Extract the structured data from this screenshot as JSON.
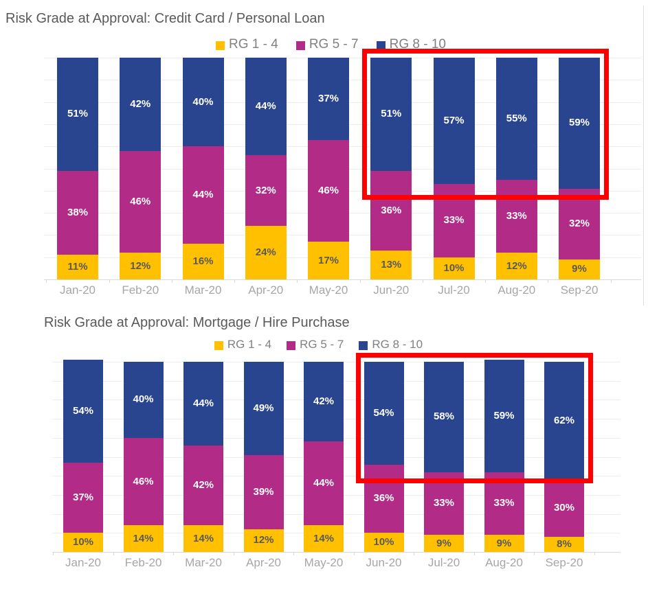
{
  "styles": {
    "title_color": "#595959",
    "legend_text_color": "#808080",
    "axis_label_color": "#A6A6A6",
    "gridline_color": "#EDEDED",
    "label_on_dark": "#FFFFFF",
    "label_on_yellow": "#595959",
    "highlight_color": "#FE0000",
    "background": "#FFFFFF"
  },
  "chart_data": [
    {
      "type": "bar",
      "stacked": true,
      "title": "Risk Grade at Approval: Credit Card / Personal Loan",
      "categories": [
        "Jan-20",
        "Feb-20",
        "Mar-20",
        "Apr-20",
        "May-20",
        "Jun-20",
        "Jul-20",
        "Aug-20",
        "Sep-20"
      ],
      "series": [
        {
          "name": "RG 1 - 4",
          "color": "#FFC000",
          "values": [
            11,
            12,
            16,
            24,
            17,
            13,
            10,
            12,
            9
          ]
        },
        {
          "name": "RG 5 - 7",
          "color": "#B12B87",
          "values": [
            38,
            46,
            44,
            32,
            46,
            36,
            33,
            33,
            32
          ]
        },
        {
          "name": "RG 8 - 10",
          "color": "#2A4590",
          "values": [
            51,
            42,
            40,
            44,
            37,
            51,
            57,
            55,
            59
          ]
        }
      ],
      "value_suffix": "%",
      "ylim": [
        0,
        100
      ],
      "grid": true,
      "legend_position": "top",
      "annotation": {
        "type": "highlight-box",
        "color": "#FE0000",
        "from": "Jun-20",
        "to": "Sep-20"
      }
    },
    {
      "type": "bar",
      "stacked": true,
      "title": "Risk Grade at Approval: Mortgage / Hire Purchase",
      "categories": [
        "Jan-20",
        "Feb-20",
        "Mar-20",
        "Apr-20",
        "May-20",
        "Jun-20",
        "Jul-20",
        "Aug-20",
        "Sep-20"
      ],
      "series": [
        {
          "name": "RG 1 - 4",
          "color": "#FFC000",
          "values": [
            10,
            14,
            14,
            12,
            14,
            10,
            9,
            9,
            8
          ]
        },
        {
          "name": "RG 5 - 7",
          "color": "#B12B87",
          "values": [
            37,
            46,
            42,
            39,
            44,
            36,
            33,
            33,
            30
          ]
        },
        {
          "name": "RG 8 - 10",
          "color": "#2A4590",
          "values": [
            54,
            40,
            44,
            49,
            42,
            54,
            58,
            59,
            62
          ]
        }
      ],
      "value_suffix": "%",
      "ylim": [
        0,
        100
      ],
      "grid": true,
      "legend_position": "top",
      "annotation": {
        "type": "highlight-box",
        "color": "#FE0000",
        "from": "Jun-20",
        "to": "Sep-20"
      }
    }
  ]
}
